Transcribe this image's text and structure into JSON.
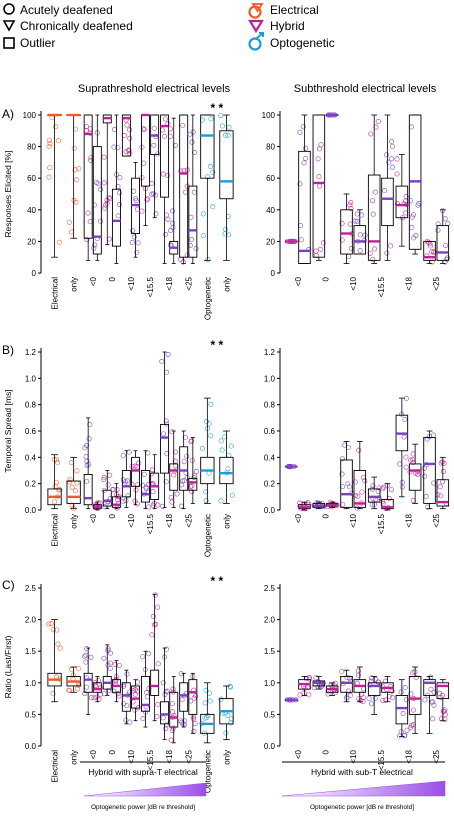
{
  "legend": {
    "shapes": [
      {
        "symbol": "circle",
        "label": "Acutely deafened"
      },
      {
        "symbol": "triangle",
        "label": "Chronically deafened"
      },
      {
        "symbol": "square",
        "label": "Outlier"
      }
    ],
    "modalities": [
      {
        "label": "Electrical",
        "color": "#f05a28"
      },
      {
        "label": "Hybrid",
        "color": "#c0209a"
      },
      {
        "label": "Optogenetic",
        "color": "#1e9ad6"
      }
    ]
  },
  "columns": {
    "left": "Suprathreshold electrical levels",
    "right": "Subthreshold electrical levels"
  },
  "colors": {
    "electrical": "#f05a28",
    "hybrid_acute": "#c0209a",
    "hybrid_chronic": "#7b3fc4",
    "optogenetic": "#1e9ad6",
    "hybrid_median": "#e0208a",
    "gradient_start": "#ffffff",
    "gradient_end": "#9b4fe8"
  },
  "significance": "* *",
  "axis_groups": {
    "supra": {
      "group_label": "Hybrid with supra-T electrical",
      "gradient_label": "Optogenetic power [dB re threshold]"
    },
    "sub": {
      "group_label": "Hybrid with sub-T electrical",
      "gradient_label": "Optogenetic power [dB re threshold]"
    }
  },
  "chart_data": [
    {
      "type": "box",
      "panel": "A)",
      "column": "supra",
      "ylabel": "Responses Elicited [%]",
      "ylim": [
        0,
        100
      ],
      "yticks": [
        0,
        20,
        40,
        60,
        80,
        100
      ],
      "categories": [
        "Electrical",
        "only",
        "<0",
        "0",
        "<10",
        "<15.5",
        "<18",
        "<25",
        "Optogenetic",
        "only"
      ],
      "boxes": [
        {
          "cat": "Electrical",
          "q1": 100,
          "median": 100,
          "q3": 100,
          "min": 10,
          "max": 100,
          "color": "#f05a28"
        },
        {
          "cat": "only",
          "q1": 100,
          "median": 100,
          "q3": 100,
          "min": 22,
          "max": 100,
          "color": "#f05a28"
        },
        {
          "cat": "<0",
          "q1": 22,
          "median": 88,
          "q3": 100,
          "min": 8,
          "max": 100,
          "color": "#c0209a"
        },
        {
          "cat": "<0",
          "q1": 12,
          "median": 23,
          "q3": 80,
          "min": 8,
          "max": 100,
          "color": "#7b3fc4"
        },
        {
          "cat": "0",
          "q1": 95,
          "median": 98,
          "q3": 100,
          "min": 18,
          "max": 100,
          "color": "#c0209a"
        },
        {
          "cat": "0",
          "q1": 17,
          "median": 33,
          "q3": 53,
          "min": 6,
          "max": 100,
          "color": "#7b3fc4"
        },
        {
          "cat": "<10",
          "q1": 74,
          "median": 98,
          "q3": 100,
          "min": 74,
          "max": 100,
          "color": "#c0209a"
        },
        {
          "cat": "<10",
          "q1": 25,
          "median": 43,
          "q3": 60,
          "min": 10,
          "max": 70,
          "color": "#7b3fc4"
        },
        {
          "cat": "<15.5",
          "q1": 55,
          "median": 100,
          "q3": 100,
          "min": 30,
          "max": 100,
          "color": "#c0209a"
        },
        {
          "cat": "<15.5",
          "q1": 75,
          "median": 87,
          "q3": 100,
          "min": 35,
          "max": 100,
          "color": "#7b3fc4"
        },
        {
          "cat": "<18",
          "q1": 48,
          "median": 93,
          "q3": 100,
          "min": 6,
          "max": 100,
          "color": "#c0209a"
        },
        {
          "cat": "<18",
          "q1": 12,
          "median": 16,
          "q3": 20,
          "min": 6,
          "max": 98,
          "color": "#7b3fc4"
        },
        {
          "cat": "<25",
          "q1": 10,
          "median": 63,
          "q3": 100,
          "min": 6,
          "max": 100,
          "color": "#c0209a"
        },
        {
          "cat": "<25",
          "q1": 10,
          "median": 27,
          "q3": 55,
          "min": 6,
          "max": 100,
          "color": "#7b3fc4"
        },
        {
          "cat": "Optogenetic",
          "q1": 60,
          "median": 87,
          "q3": 100,
          "min": 8,
          "max": 100,
          "color": "#1e9ad6"
        },
        {
          "cat": "only",
          "q1": 47,
          "median": 58,
          "q3": 90,
          "min": 8,
          "max": 100,
          "color": "#1e9ad6"
        }
      ]
    },
    {
      "type": "box",
      "panel": "A)",
      "column": "sub",
      "ylabel": "",
      "ylim": [
        0,
        100
      ],
      "yticks": [
        0,
        20,
        40,
        60,
        80,
        100
      ],
      "categories": [
        "<0",
        "0",
        "<10",
        "<15.5",
        "<18",
        "<25"
      ],
      "boxes": [
        {
          "cat": "<0",
          "q1": 20,
          "median": 20,
          "q3": 20,
          "min": 20,
          "max": 20,
          "color": "#c0209a"
        },
        {
          "cat": "<0",
          "q1": 6,
          "median": 14,
          "q3": 77,
          "min": 6,
          "max": 100,
          "color": "#7b3fc4"
        },
        {
          "cat": "0",
          "q1": 10,
          "median": 57,
          "q3": 100,
          "min": 8,
          "max": 100,
          "color": "#c0209a"
        },
        {
          "cat": "0",
          "q1": 100,
          "median": 100,
          "q3": 100,
          "min": 100,
          "max": 100,
          "color": "#7b3fc4"
        },
        {
          "cat": "<10",
          "q1": 12,
          "median": 25,
          "q3": 40,
          "min": 6,
          "max": 50,
          "color": "#c0209a"
        },
        {
          "cat": "<10",
          "q1": 12,
          "median": 20,
          "q3": 30,
          "min": 12,
          "max": 40,
          "color": "#7b3fc4"
        },
        {
          "cat": "<15.5",
          "q1": 8,
          "median": 20,
          "q3": 62,
          "min": 6,
          "max": 100,
          "color": "#c0209a"
        },
        {
          "cat": "<15.5",
          "q1": 30,
          "median": 47,
          "q3": 60,
          "min": 8,
          "max": 100,
          "color": "#7b3fc4"
        },
        {
          "cat": "<18",
          "q1": 35,
          "median": 43,
          "q3": 55,
          "min": 17,
          "max": 75,
          "color": "#c0209a"
        },
        {
          "cat": "<18",
          "q1": 15,
          "median": 58,
          "q3": 100,
          "min": 12,
          "max": 100,
          "color": "#7b3fc4"
        },
        {
          "cat": "<25",
          "q1": 8,
          "median": 10,
          "q3": 20,
          "min": 6,
          "max": 20,
          "color": "#c0209a"
        },
        {
          "cat": "<25",
          "q1": 8,
          "median": 13,
          "q3": 30,
          "min": 6,
          "max": 40,
          "color": "#7b3fc4"
        }
      ]
    },
    {
      "type": "box",
      "panel": "B)",
      "column": "supra",
      "ylabel": "Temporal Spread [ms]",
      "ylim": [
        0,
        1.2
      ],
      "yticks": [
        0.0,
        0.2,
        0.4,
        0.6,
        0.8,
        1.0,
        1.2
      ],
      "categories": [
        "Electrical",
        "only",
        "<0",
        "0",
        "<10",
        "<15.5",
        "<18",
        "<25",
        "Optogenetic",
        "only"
      ],
      "boxes": [
        {
          "cat": "Electrical",
          "q1": 0.04,
          "median": 0.1,
          "q3": 0.16,
          "min": 0.01,
          "max": 0.42,
          "color": "#f05a28"
        },
        {
          "cat": "only",
          "q1": 0.05,
          "median": 0.1,
          "q3": 0.22,
          "min": 0.01,
          "max": 0.4,
          "color": "#f05a28"
        },
        {
          "cat": "<0",
          "q1": 0.04,
          "median": 0.09,
          "q3": 0.27,
          "min": 0.01,
          "max": 0.7,
          "color": "#7b3fc4"
        },
        {
          "cat": "<0",
          "q1": 0.01,
          "median": 0.02,
          "q3": 0.04,
          "min": 0.0,
          "max": 0.06,
          "color": "#c0209a"
        },
        {
          "cat": "0",
          "q1": 0.03,
          "median": 0.07,
          "q3": 0.15,
          "min": 0.01,
          "max": 0.3,
          "color": "#7b3fc4"
        },
        {
          "cat": "0",
          "q1": 0.02,
          "median": 0.04,
          "q3": 0.1,
          "min": 0.01,
          "max": 0.2,
          "color": "#c0209a"
        },
        {
          "cat": "<10",
          "q1": 0.1,
          "median": 0.18,
          "q3": 0.3,
          "min": 0.02,
          "max": 0.45,
          "color": "#7b3fc4"
        },
        {
          "cat": "<10",
          "q1": 0.18,
          "median": 0.3,
          "q3": 0.4,
          "min": 0.04,
          "max": 0.45,
          "color": "#c0209a"
        },
        {
          "cat": "<15.5",
          "q1": 0.06,
          "median": 0.12,
          "q3": 0.3,
          "min": 0.01,
          "max": 0.45,
          "color": "#7b3fc4"
        },
        {
          "cat": "<15.5",
          "q1": 0.08,
          "median": 0.18,
          "q3": 0.28,
          "min": 0.01,
          "max": 0.42,
          "color": "#c0209a"
        },
        {
          "cat": "<18",
          "q1": 0.28,
          "median": 0.55,
          "q3": 0.65,
          "min": 0.02,
          "max": 1.2,
          "color": "#7b3fc4"
        },
        {
          "cat": "<18",
          "q1": 0.15,
          "median": 0.3,
          "q3": 0.35,
          "min": 0.02,
          "max": 0.6,
          "color": "#c0209a"
        },
        {
          "cat": "<25",
          "q1": 0.15,
          "median": 0.3,
          "q3": 0.48,
          "min": 0.01,
          "max": 0.6,
          "color": "#7b3fc4"
        },
        {
          "cat": "<25",
          "q1": 0.15,
          "median": 0.21,
          "q3": 0.24,
          "min": 0.05,
          "max": 0.55,
          "color": "#c0209a"
        },
        {
          "cat": "Optogenetic",
          "q1": 0.2,
          "median": 0.3,
          "q3": 0.4,
          "min": 0.05,
          "max": 0.85,
          "color": "#1e9ad6"
        },
        {
          "cat": "only",
          "q1": 0.2,
          "median": 0.28,
          "q3": 0.4,
          "min": 0.05,
          "max": 0.6,
          "color": "#1e9ad6"
        }
      ]
    },
    {
      "type": "box",
      "panel": "B)",
      "column": "sub",
      "ylabel": "",
      "ylim": [
        0,
        1.2
      ],
      "yticks": [
        0.0,
        0.2,
        0.4,
        0.6,
        0.8,
        1.0,
        1.2
      ],
      "categories": [
        "<0",
        "0",
        "<10",
        "<15.5",
        "<18",
        "<25"
      ],
      "boxes": [
        {
          "cat": "<0",
          "q1": 0.33,
          "median": 0.33,
          "q3": 0.33,
          "min": 0.33,
          "max": 0.33,
          "color": "#7b3fc4"
        },
        {
          "cat": "<0",
          "q1": 0.01,
          "median": 0.02,
          "q3": 0.04,
          "min": 0.0,
          "max": 0.06,
          "color": "#c0209a"
        },
        {
          "cat": "0",
          "q1": 0.02,
          "median": 0.03,
          "q3": 0.05,
          "min": 0.01,
          "max": 0.06,
          "color": "#7b3fc4"
        },
        {
          "cat": "0",
          "q1": 0.03,
          "median": 0.04,
          "q3": 0.05,
          "min": 0.02,
          "max": 0.06,
          "color": "#c0209a"
        },
        {
          "cat": "<10",
          "q1": 0.02,
          "median": 0.12,
          "q3": 0.38,
          "min": 0.01,
          "max": 0.52,
          "color": "#7b3fc4"
        },
        {
          "cat": "<10",
          "q1": 0.02,
          "median": 0.05,
          "q3": 0.3,
          "min": 0.01,
          "max": 0.52,
          "color": "#c0209a"
        },
        {
          "cat": "<15.5",
          "q1": 0.06,
          "median": 0.1,
          "q3": 0.16,
          "min": 0.01,
          "max": 0.25,
          "color": "#7b3fc4"
        },
        {
          "cat": "<15.5",
          "q1": 0.01,
          "median": 0.02,
          "q3": 0.08,
          "min": 0.0,
          "max": 0.2,
          "color": "#c0209a"
        },
        {
          "cat": "<18",
          "q1": 0.45,
          "median": 0.58,
          "q3": 0.72,
          "min": 0.1,
          "max": 0.85,
          "color": "#7b3fc4"
        },
        {
          "cat": "<18",
          "q1": 0.15,
          "median": 0.3,
          "q3": 0.35,
          "min": 0.05,
          "max": 0.5,
          "color": "#c0209a"
        },
        {
          "cat": "<25",
          "q1": 0.05,
          "median": 0.35,
          "q3": 0.55,
          "min": 0.01,
          "max": 0.6,
          "color": "#7b3fc4"
        },
        {
          "cat": "<25",
          "q1": 0.03,
          "median": 0.06,
          "q3": 0.23,
          "min": 0.01,
          "max": 0.4,
          "color": "#c0209a"
        }
      ]
    },
    {
      "type": "box",
      "panel": "C)",
      "column": "supra",
      "ylabel": "Ratio (Last/First)",
      "ylim": [
        0,
        2.5
      ],
      "yticks": [
        0.0,
        0.5,
        1.0,
        1.5,
        2.0,
        2.5
      ],
      "categories": [
        "Electrical",
        "only",
        "<0",
        "0",
        "<10",
        "<15.5",
        "<18",
        "<25",
        "Optogenetic",
        "only"
      ],
      "boxes": [
        {
          "cat": "Electrical",
          "q1": 0.95,
          "median": 1.05,
          "q3": 1.15,
          "min": 0.7,
          "max": 2.0,
          "color": "#f05a28"
        },
        {
          "cat": "only",
          "q1": 0.95,
          "median": 1.02,
          "q3": 1.1,
          "min": 0.85,
          "max": 1.25,
          "color": "#f05a28"
        },
        {
          "cat": "<0",
          "q1": 0.85,
          "median": 1.05,
          "q3": 1.15,
          "min": 0.5,
          "max": 1.55,
          "color": "#7b3fc4"
        },
        {
          "cat": "<0",
          "q1": 0.85,
          "median": 0.9,
          "q3": 1.0,
          "min": 0.7,
          "max": 1.1,
          "color": "#c0209a"
        },
        {
          "cat": "0",
          "q1": 0.9,
          "median": 1.0,
          "q3": 1.1,
          "min": 0.8,
          "max": 1.6,
          "color": "#7b3fc4"
        },
        {
          "cat": "0",
          "q1": 0.85,
          "median": 0.95,
          "q3": 1.05,
          "min": 0.7,
          "max": 1.35,
          "color": "#c0209a"
        },
        {
          "cat": "<10",
          "q1": 0.55,
          "median": 0.8,
          "q3": 1.0,
          "min": 0.35,
          "max": 1.2,
          "color": "#7b3fc4"
        },
        {
          "cat": "<10",
          "q1": 0.6,
          "median": 0.75,
          "q3": 0.95,
          "min": 0.4,
          "max": 1.05,
          "color": "#c0209a"
        },
        {
          "cat": "<15.5",
          "q1": 0.55,
          "median": 0.65,
          "q3": 1.1,
          "min": 0.3,
          "max": 1.5,
          "color": "#7b3fc4"
        },
        {
          "cat": "<15.5",
          "q1": 0.8,
          "median": 0.95,
          "q3": 1.2,
          "min": 0.4,
          "max": 2.4,
          "color": "#c0209a"
        },
        {
          "cat": "<18",
          "q1": 0.35,
          "median": 0.5,
          "q3": 0.7,
          "min": 0.1,
          "max": 1.55,
          "color": "#7b3fc4"
        },
        {
          "cat": "<18",
          "q1": 0.3,
          "median": 0.45,
          "q3": 0.85,
          "min": 0.05,
          "max": 1.1,
          "color": "#c0209a"
        },
        {
          "cat": "<25",
          "q1": 0.55,
          "median": 0.8,
          "q3": 1.0,
          "min": 0.3,
          "max": 1.15,
          "color": "#7b3fc4"
        },
        {
          "cat": "<25",
          "q1": 0.5,
          "median": 0.85,
          "q3": 1.05,
          "min": 0.2,
          "max": 1.15,
          "color": "#c0209a"
        },
        {
          "cat": "Optogenetic",
          "q1": 0.2,
          "median": 0.35,
          "q3": 0.5,
          "min": 0.05,
          "max": 1.0,
          "color": "#1e9ad6"
        },
        {
          "cat": "only",
          "q1": 0.35,
          "median": 0.55,
          "q3": 0.75,
          "min": 0.1,
          "max": 0.95,
          "color": "#1e9ad6"
        }
      ]
    },
    {
      "type": "box",
      "panel": "C)",
      "column": "sub",
      "ylabel": "",
      "ylim": [
        0,
        2.5
      ],
      "yticks": [
        0.0,
        0.5,
        1.0,
        1.5,
        2.0,
        2.5
      ],
      "categories": [
        "<0",
        "0",
        "<10",
        "<15.5",
        "<18",
        "<25"
      ],
      "boxes": [
        {
          "cat": "<0",
          "q1": 0.73,
          "median": 0.73,
          "q3": 0.73,
          "min": 0.73,
          "max": 0.73,
          "color": "#7b3fc4"
        },
        {
          "cat": "<0",
          "q1": 0.9,
          "median": 0.98,
          "q3": 1.05,
          "min": 0.8,
          "max": 1.1,
          "color": "#c0209a"
        },
        {
          "cat": "0",
          "q1": 0.95,
          "median": 1.0,
          "q3": 1.03,
          "min": 0.9,
          "max": 1.1,
          "color": "#7b3fc4"
        },
        {
          "cat": "0",
          "q1": 0.85,
          "median": 0.9,
          "q3": 0.95,
          "min": 0.8,
          "max": 1.0,
          "color": "#c0209a"
        },
        {
          "cat": "<10",
          "q1": 0.85,
          "median": 1.0,
          "q3": 1.1,
          "min": 0.7,
          "max": 1.2,
          "color": "#7b3fc4"
        },
        {
          "cat": "<10",
          "q1": 0.85,
          "median": 0.95,
          "q3": 1.05,
          "min": 0.7,
          "max": 1.25,
          "color": "#c0209a"
        },
        {
          "cat": "<15.5",
          "q1": 0.8,
          "median": 0.95,
          "q3": 1.0,
          "min": 0.5,
          "max": 1.1,
          "color": "#7b3fc4"
        },
        {
          "cat": "<15.5",
          "q1": 0.85,
          "median": 0.92,
          "q3": 1.0,
          "min": 0.7,
          "max": 1.1,
          "color": "#c0209a"
        },
        {
          "cat": "<18",
          "q1": 0.35,
          "median": 0.6,
          "q3": 0.8,
          "min": 0.15,
          "max": 1.05,
          "color": "#7b3fc4"
        },
        {
          "cat": "<18",
          "q1": 0.5,
          "median": 0.75,
          "q3": 1.1,
          "min": 0.2,
          "max": 1.25,
          "color": "#c0209a"
        },
        {
          "cat": "<25",
          "q1": 0.8,
          "median": 1.0,
          "q3": 1.05,
          "min": 0.2,
          "max": 1.1,
          "color": "#7b3fc4"
        },
        {
          "cat": "<25",
          "q1": 0.75,
          "median": 0.95,
          "q3": 1.0,
          "min": 0.4,
          "max": 1.05,
          "color": "#c0209a"
        }
      ]
    }
  ]
}
